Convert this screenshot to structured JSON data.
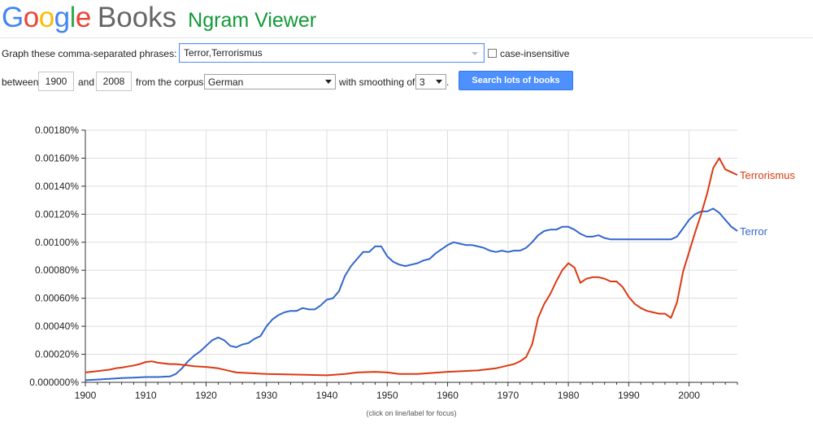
{
  "header": {
    "logo_letters": [
      {
        "ch": "G",
        "color": "#4285f4"
      },
      {
        "ch": "o",
        "color": "#ea4335"
      },
      {
        "ch": "o",
        "color": "#fbbc05"
      },
      {
        "ch": "g",
        "color": "#4285f4"
      },
      {
        "ch": "l",
        "color": "#34a853"
      },
      {
        "ch": "e",
        "color": "#ea4335"
      }
    ],
    "product": "Books",
    "app_name": "Ngram Viewer"
  },
  "query": {
    "phrases_label": "Graph these comma-separated phrases:",
    "phrases_value": "Terror,Terrorismus",
    "case_insensitive_label": "case-insensitive",
    "case_insensitive_checked": false,
    "between_label": "between",
    "year_start": "1900",
    "and_label": "and",
    "year_end": "2008",
    "corpus_label": "from the corpus",
    "corpus_value": "German",
    "smoothing_label": "with smoothing of",
    "smoothing_value": "3",
    "trailing_dot": ".",
    "search_button": "Search lots of books"
  },
  "focus_hint": "(click on line/label for focus)",
  "chart_data": {
    "type": "line",
    "title": "",
    "xlabel": "",
    "ylabel": "",
    "xlim": [
      1900,
      2008
    ],
    "ylim": [
      0,
      0.0018
    ],
    "x_ticks": [
      1900,
      1910,
      1920,
      1930,
      1940,
      1950,
      1960,
      1970,
      1980,
      1990,
      2000
    ],
    "y_ticks": [
      "0.000000%",
      "0.00020%",
      "0.00040%",
      "0.00060%",
      "0.00080%",
      "0.00100%",
      "0.00120%",
      "0.00140%",
      "0.00160%",
      "0.00180%"
    ],
    "y_tick_values": [
      0,
      0.0002,
      0.0004,
      0.0006,
      0.0008,
      0.001,
      0.0012,
      0.0014,
      0.0016,
      0.0018
    ],
    "grid": true,
    "legend_placement": "line-end labels (right)",
    "series": [
      {
        "name": "Terror",
        "color": "#3366cc",
        "x": [
          1900,
          1902,
          1904,
          1906,
          1908,
          1910,
          1912,
          1914,
          1915,
          1916,
          1917,
          1918,
          1919,
          1920,
          1921,
          1922,
          1923,
          1924,
          1925,
          1926,
          1927,
          1928,
          1929,
          1930,
          1931,
          1932,
          1933,
          1934,
          1935,
          1936,
          1937,
          1938,
          1939,
          1940,
          1941,
          1942,
          1943,
          1944,
          1945,
          1946,
          1947,
          1948,
          1949,
          1950,
          1951,
          1952,
          1953,
          1954,
          1955,
          1956,
          1957,
          1958,
          1959,
          1960,
          1961,
          1962,
          1963,
          1964,
          1965,
          1966,
          1967,
          1968,
          1969,
          1970,
          1971,
          1972,
          1973,
          1974,
          1975,
          1976,
          1977,
          1978,
          1979,
          1980,
          1981,
          1982,
          1983,
          1984,
          1985,
          1986,
          1987,
          1988,
          1989,
          1990,
          1991,
          1992,
          1993,
          1994,
          1995,
          1996,
          1997,
          1998,
          1999,
          2000,
          2001,
          2002,
          2003,
          2004,
          2005,
          2006,
          2007,
          2008
        ],
        "values": [
          1.5e-05,
          2e-05,
          2.5e-05,
          3e-05,
          3.3e-05,
          3.8e-05,
          3.8e-05,
          4.2e-05,
          6e-05,
          0.0001,
          0.00015,
          0.00019,
          0.00022,
          0.00026,
          0.0003,
          0.00032,
          0.0003,
          0.00026,
          0.00025,
          0.00027,
          0.00028,
          0.00031,
          0.00033,
          0.0004,
          0.00045,
          0.00048,
          0.0005,
          0.00051,
          0.00051,
          0.00053,
          0.00052,
          0.00052,
          0.00055,
          0.00059,
          0.0006,
          0.00065,
          0.00076,
          0.00083,
          0.00088,
          0.00093,
          0.00093,
          0.00097,
          0.00097,
          0.0009,
          0.00086,
          0.00084,
          0.00083,
          0.00084,
          0.00085,
          0.00087,
          0.00088,
          0.00092,
          0.00095,
          0.00098,
          0.001,
          0.00099,
          0.00098,
          0.00098,
          0.00097,
          0.00096,
          0.00094,
          0.00093,
          0.00094,
          0.00093,
          0.00094,
          0.00094,
          0.00096,
          0.001,
          0.00105,
          0.00108,
          0.00109,
          0.00109,
          0.00111,
          0.00111,
          0.00109,
          0.00106,
          0.00104,
          0.00104,
          0.00105,
          0.00103,
          0.00102,
          0.00102,
          0.00102,
          0.00102,
          0.00102,
          0.00102,
          0.00102,
          0.00102,
          0.00102,
          0.00102,
          0.00102,
          0.00104,
          0.0011,
          0.00116,
          0.0012,
          0.00122,
          0.00122,
          0.00124,
          0.00121,
          0.00116,
          0.00111,
          0.00108
        ]
      },
      {
        "name": "Terrorismus",
        "color": "#dc3912",
        "x": [
          1900,
          1902,
          1904,
          1905,
          1906,
          1908,
          1909,
          1910,
          1911,
          1912,
          1914,
          1915,
          1917,
          1918,
          1920,
          1922,
          1924,
          1925,
          1930,
          1935,
          1940,
          1943,
          1945,
          1948,
          1950,
          1952,
          1955,
          1960,
          1965,
          1968,
          1970,
          1971,
          1972,
          1973,
          1974,
          1975,
          1976,
          1977,
          1978,
          1979,
          1980,
          1981,
          1982,
          1983,
          1984,
          1985,
          1986,
          1987,
          1988,
          1989,
          1990,
          1991,
          1992,
          1993,
          1994,
          1995,
          1996,
          1997,
          1998,
          1999,
          2000,
          2001,
          2002,
          2003,
          2004,
          2005,
          2006,
          2007,
          2008
        ],
        "values": [
          7e-05,
          8e-05,
          9e-05,
          0.0001,
          0.000105,
          0.00012,
          0.00013,
          0.000145,
          0.00015,
          0.00014,
          0.00013,
          0.00013,
          0.00012,
          0.000115,
          0.00011,
          0.0001,
          8e-05,
          7e-05,
          6e-05,
          5.5e-05,
          5e-05,
          6e-05,
          7e-05,
          7.5e-05,
          7e-05,
          6e-05,
          6e-05,
          7.5e-05,
          8.5e-05,
          0.0001,
          0.00012,
          0.00013,
          0.00015,
          0.00018,
          0.00027,
          0.00046,
          0.00056,
          0.00063,
          0.00072,
          0.0008,
          0.00085,
          0.00082,
          0.00071,
          0.00074,
          0.00075,
          0.00075,
          0.00074,
          0.00072,
          0.00072,
          0.00068,
          0.00061,
          0.00056,
          0.00053,
          0.00051,
          0.0005,
          0.00049,
          0.00049,
          0.00046,
          0.00057,
          0.00079,
          0.00093,
          0.00107,
          0.0012,
          0.00135,
          0.00153,
          0.0016,
          0.00152,
          0.0015,
          0.00148
        ]
      }
    ]
  }
}
